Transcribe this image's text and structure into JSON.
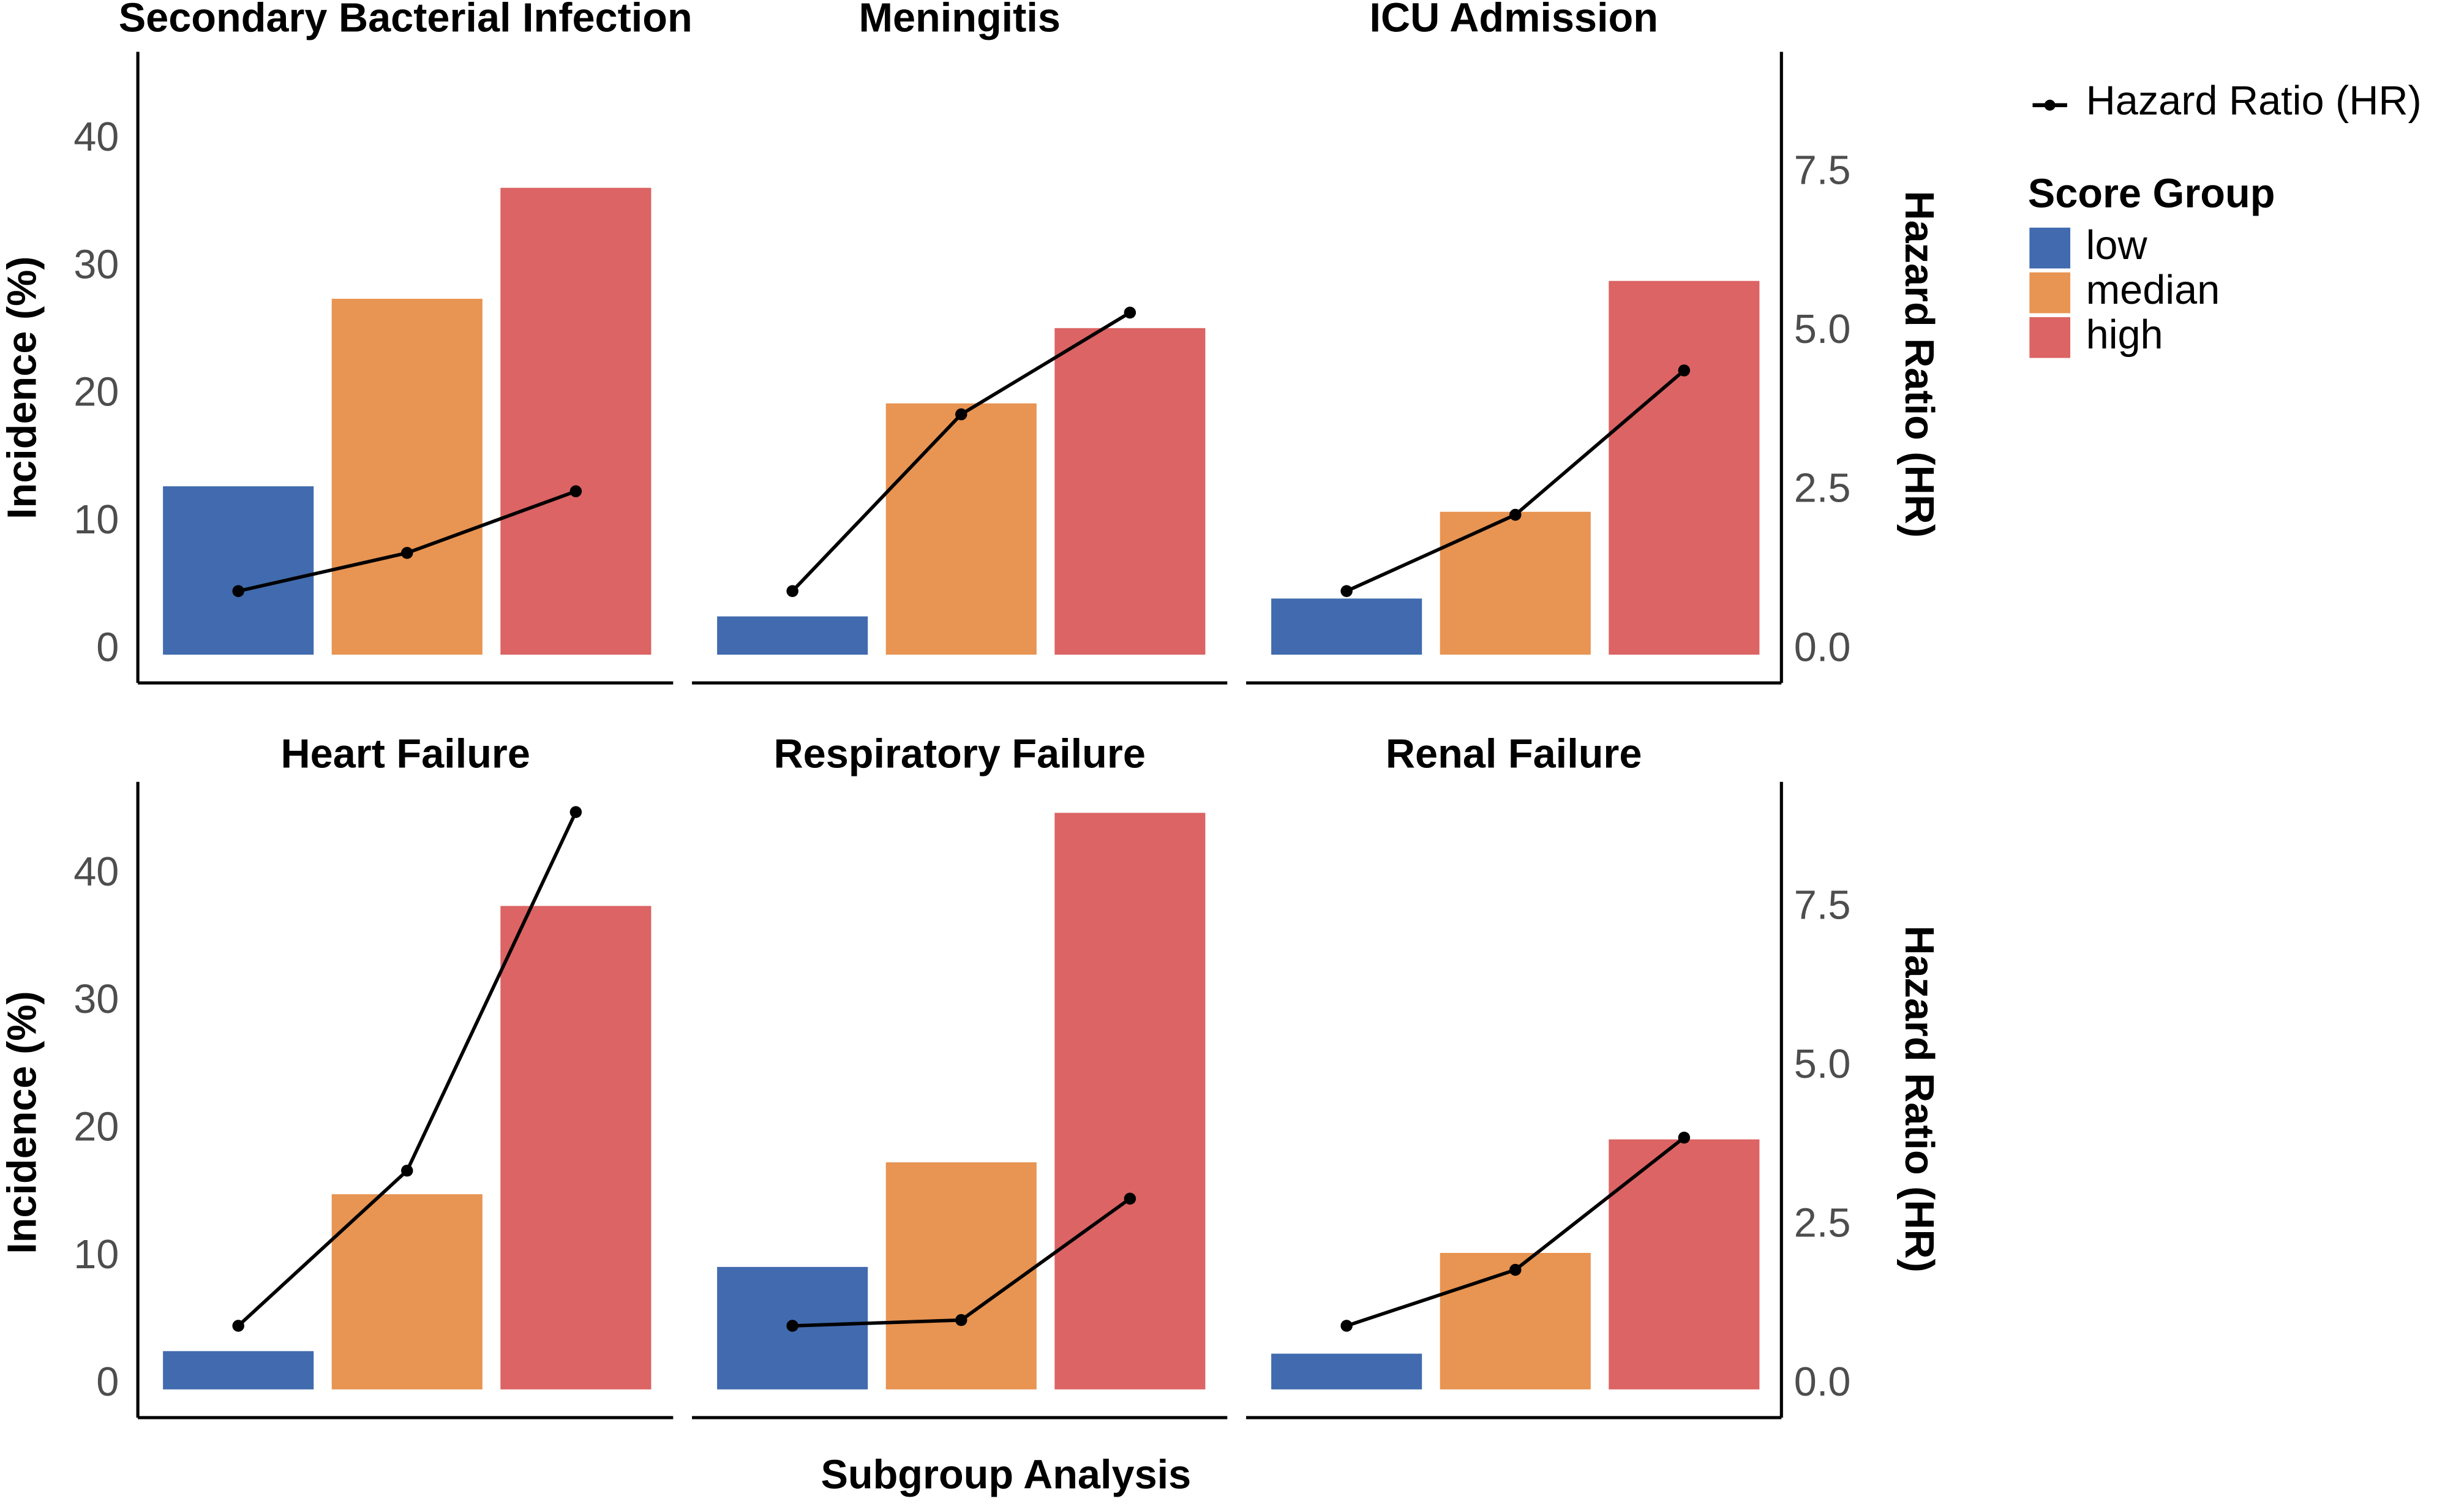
{
  "chart_data": {
    "type": "bar",
    "categories": [
      "low",
      "median",
      "high"
    ],
    "xlabel": "Subgroup Analysis",
    "ylabel": "Incidence (%)",
    "y2label": "Hazard Ratio (HR)",
    "ylim": [
      0,
      45
    ],
    "y_ticks": [
      "0",
      "10",
      "20",
      "30",
      "40"
    ],
    "y2lim": [
      0,
      9
    ],
    "y2_ticks": [
      "0.0",
      "2.5",
      "5.0",
      "7.5"
    ],
    "grid": false,
    "legend": {
      "position": "top-right",
      "line_label": "Hazard Ratio (HR)",
      "title": "Score Group",
      "items": [
        "low",
        "median",
        "high"
      ]
    },
    "colors": {
      "low": "#416BAE",
      "median": "#E89452",
      "high": "#DC6464",
      "line": "#000000"
    },
    "panels": [
      {
        "title": "Secondary Bacterial Infection",
        "incidence": [
          13.2,
          27.9,
          36.6
        ],
        "hr": [
          1.0,
          1.6,
          2.57
        ]
      },
      {
        "title": "Meningitis",
        "incidence": [
          3.0,
          19.7,
          25.6
        ],
        "hr": [
          1.0,
          3.78,
          5.38
        ]
      },
      {
        "title": "ICU Admission",
        "incidence": [
          4.4,
          11.2,
          29.3
        ],
        "hr": [
          1.0,
          2.2,
          4.47
        ]
      },
      {
        "title": "Heart Failure",
        "incidence": [
          3.0,
          15.3,
          37.9
        ],
        "hr": [
          1.0,
          3.44,
          9.08
        ]
      },
      {
        "title": "Respiratory Failure",
        "incidence": [
          9.6,
          17.8,
          45.2
        ],
        "hr": [
          1.0,
          1.09,
          3.0
        ]
      },
      {
        "title": "Renal Failure",
        "incidence": [
          2.8,
          10.7,
          19.6
        ],
        "hr": [
          1.0,
          1.88,
          3.96
        ]
      }
    ]
  }
}
